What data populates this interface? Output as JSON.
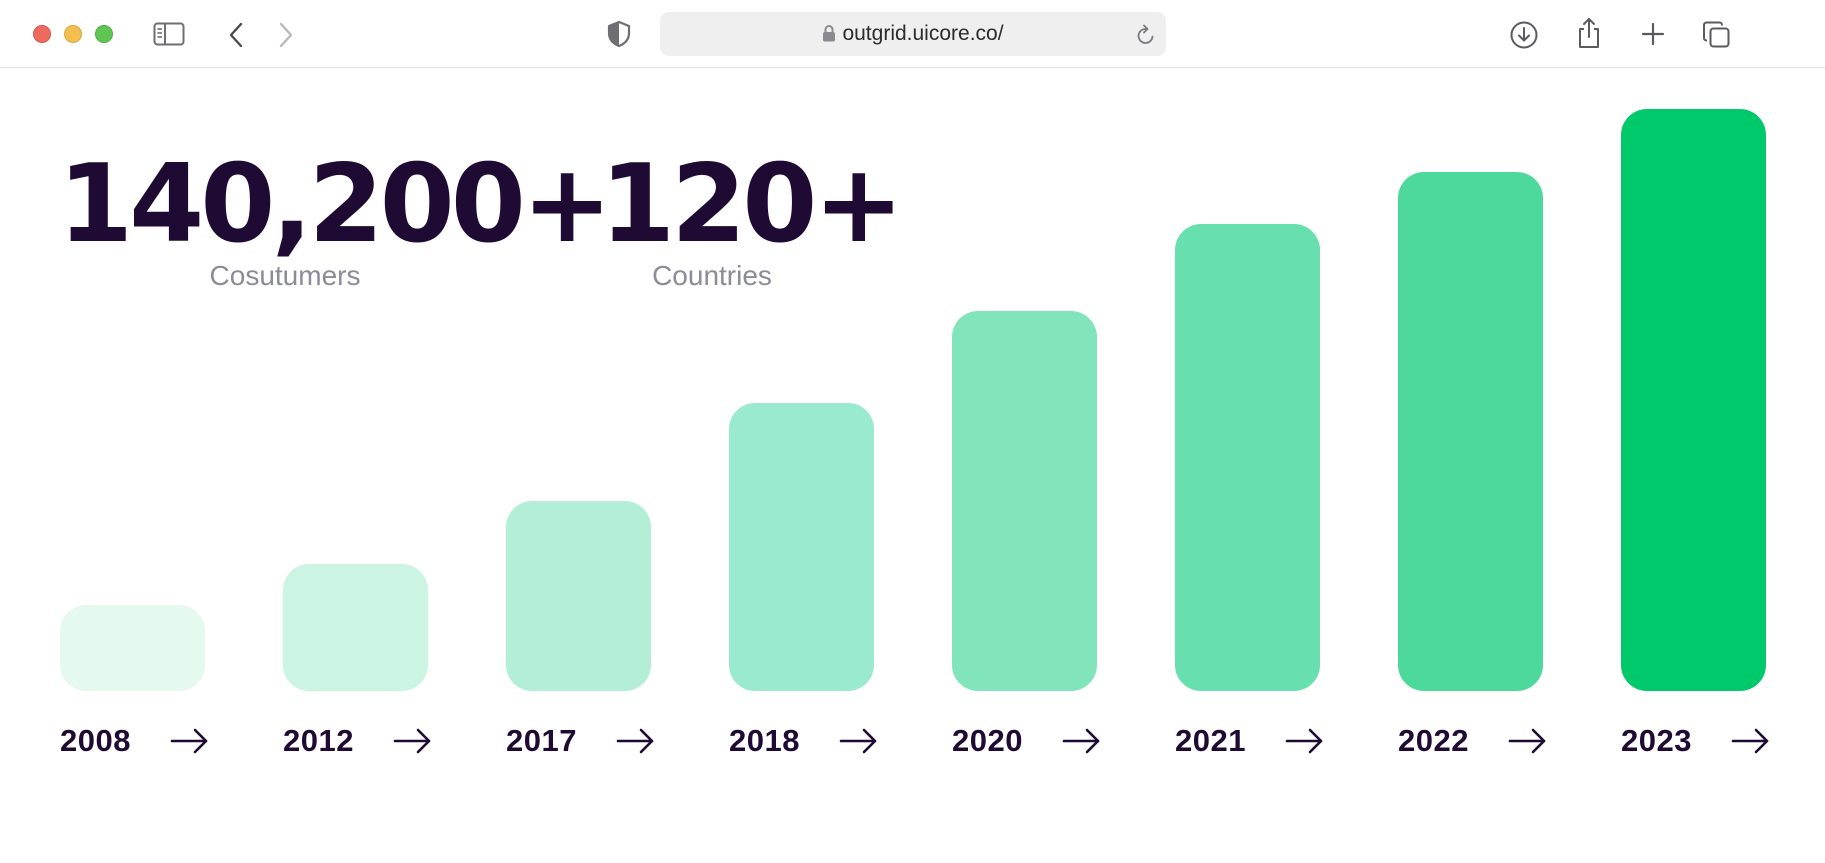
{
  "browser": {
    "url": "outgrid.uicore.co/"
  },
  "stats": [
    {
      "value": "140,200+",
      "label": "Cosutumers"
    },
    {
      "value": "120+",
      "label": "Countries"
    }
  ],
  "chart_data": {
    "type": "bar",
    "categories": [
      "2008",
      "2012",
      "2017",
      "2018",
      "2020",
      "2021",
      "2022",
      "2023"
    ],
    "values": [
      15,
      22,
      33,
      50,
      66,
      81,
      90,
      101
    ],
    "colors": [
      "#e6f9ef",
      "#ccf4e2",
      "#b3efd6",
      "#9aead0",
      "#82e4bb",
      "#68dfae",
      "#4ed99c",
      "#00c96b"
    ],
    "title": "",
    "xlabel": "",
    "ylabel": "",
    "ylim": [
      0,
      101
    ],
    "grid": false,
    "legend": "none"
  }
}
